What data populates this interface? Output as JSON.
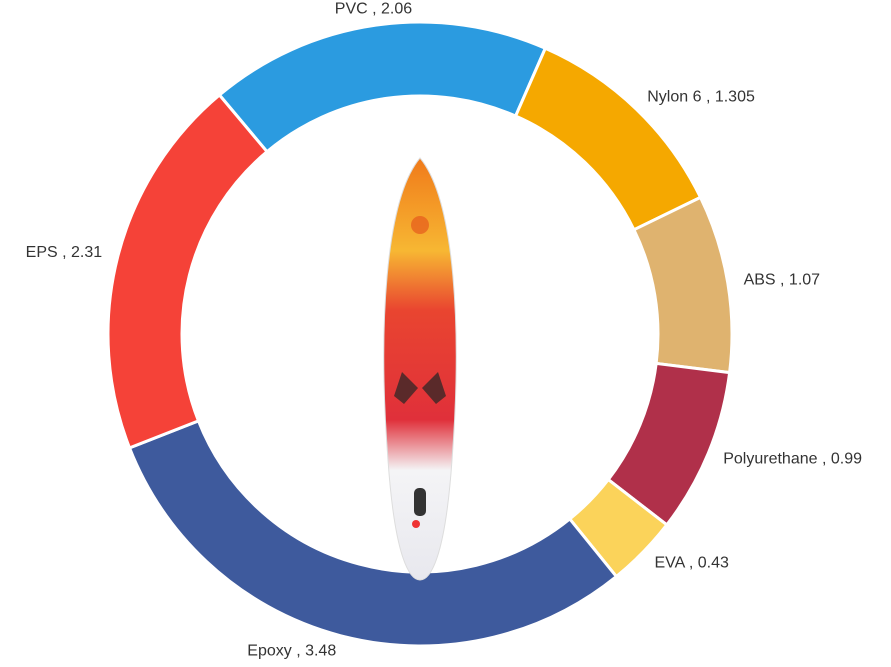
{
  "chart_data": {
    "type": "donut",
    "values": [
      2.06,
      1.305,
      1.07,
      0.99,
      0.43,
      3.48,
      2.31
    ],
    "value_labels": [
      "PVC , 2.06",
      "Nylon 6 , 1.305",
      "ABS , 1.07",
      "Polyurethane , 0.99",
      "EVA , 0.43",
      "Epoxy , 3.48",
      "EPS , 2.31"
    ],
    "colors": [
      "#2b9be0",
      "#f5a800",
      "#dfb36f",
      "#b0304a",
      "#fbd35a",
      "#3e5a9d",
      "#f54238"
    ]
  }
}
